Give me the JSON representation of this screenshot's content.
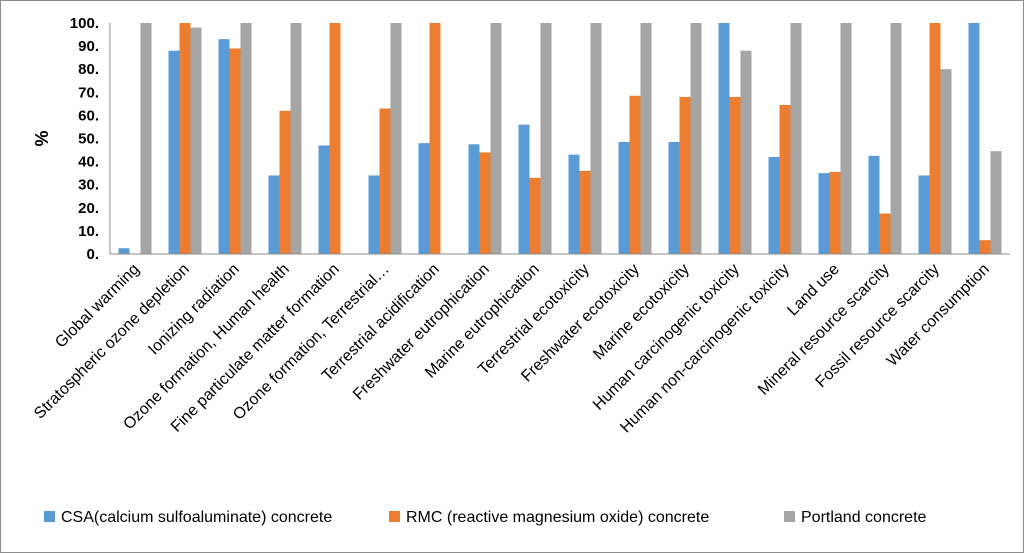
{
  "chart_data": {
    "type": "bar",
    "ylabel": "%",
    "ylim": [
      0,
      100
    ],
    "yticks": [
      "0.",
      "10.",
      "20.",
      "30.",
      "40.",
      "50.",
      "60.",
      "70.",
      "80.",
      "90.",
      "100."
    ],
    "grid": false,
    "legend_position": "bottom",
    "categories": [
      "Global warming",
      "Stratospheric ozone depletion",
      "Ionizing radiation",
      "Ozone formation, Human health",
      "Fine particulate matter formation",
      "Ozone formation, Terrestrial…",
      "Terrestrial acidification",
      "Freshwater eutrophication",
      "Marine eutrophication",
      "Terrestrial ecotoxicity",
      "Freshwater ecotoxicity",
      "Marine ecotoxicity",
      "Human carcinogenic toxicity",
      "Human non-carcinogenic toxicity",
      "Land use",
      "Mineral resource scarcity",
      "Fossil resource scarcity",
      "Water consumption"
    ],
    "series": [
      {
        "name": "CSA(calcium sulfoaluminate) concrete",
        "color": "#5b9bd5",
        "values": [
          2.5,
          88,
          93,
          34,
          47,
          34,
          48,
          47.5,
          56,
          43,
          48.5,
          48.5,
          100,
          42,
          35,
          42.5,
          34,
          100
        ]
      },
      {
        "name": "RMC (reactive magnesium oxide) concrete",
        "color": "#ed7d31",
        "values": [
          0,
          100,
          89,
          62,
          100,
          63,
          100,
          44,
          33,
          36,
          68.5,
          68,
          68,
          64.5,
          35.5,
          17.5,
          100,
          6
        ]
      },
      {
        "name": "Portland concrete",
        "color": "#a5a5a5",
        "values": [
          100,
          98,
          100,
          100,
          0,
          100,
          0,
          100,
          100,
          100,
          100,
          100,
          88,
          100,
          100,
          100,
          80,
          44.5
        ]
      }
    ]
  }
}
